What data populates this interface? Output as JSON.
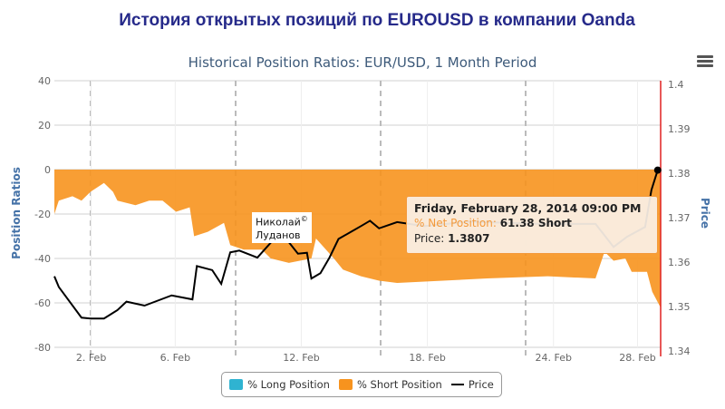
{
  "page_title": "История открытых позиций по EUROUSD в компании Oanda",
  "watermark": [
    "Николай",
    "Луданов",
    "©"
  ],
  "menu_icon": "hamburger-icon",
  "tooltip": {
    "date": "Friday, February 28, 2014 09:00 PM",
    "net_label": "% Net Position:",
    "net_value": "61.38 Short",
    "price_label": "Price:",
    "price_value": "1.3807"
  },
  "legend": [
    {
      "label": "% Long Position",
      "color": "#2fb3d1"
    },
    {
      "label": "% Short Position",
      "color": "#f7931e"
    },
    {
      "label": "Price",
      "color": "#000000"
    }
  ],
  "chart_data": {
    "type": "area",
    "title": "Historical Position Ratios: EUR/USD, 1 Month Period",
    "ylabel": "Position Ratios",
    "y2label": "Price",
    "ylim": [
      -80,
      40
    ],
    "y2lim": [
      1.34,
      1.4
    ],
    "xlim_days": [
      0.25,
      29.1
    ],
    "yticks": [
      "40",
      "20",
      "0",
      "-20",
      "-40",
      "-60",
      "-80"
    ],
    "y2ticks": [
      "1.4",
      "1.39",
      "1.38",
      "1.37",
      "1.36",
      "1.35",
      "1.34"
    ],
    "xticks": [
      {
        "day": 2,
        "label": "2. Feb"
      },
      {
        "day": 6,
        "label": "6. Feb"
      },
      {
        "day": 12,
        "label": "12. Feb"
      },
      {
        "day": 18,
        "label": "18. Feb"
      },
      {
        "day": 24,
        "label": "24. Feb"
      },
      {
        "day": 28,
        "label": "28. Feb"
      }
    ],
    "series": [
      {
        "name": "% Short Position",
        "color": "#f7931e",
        "x": [
          0.25,
          0.46,
          1.11,
          1.54,
          1.97,
          2.61,
          3.04,
          3.25,
          4.11,
          4.76,
          5.4,
          6.04,
          6.69,
          6.9,
          7.55,
          8.32,
          8.62,
          9.26,
          10.12,
          10.55,
          11.41,
          12.48,
          12.7,
          13.55,
          13.98,
          14.84,
          15.7,
          16.56,
          20.85,
          23.73,
          26.0,
          26.43,
          26.86,
          27.42,
          27.72,
          28.45,
          28.7,
          29.09
        ],
        "values": [
          -20,
          -14,
          -12,
          -14,
          -10,
          -6,
          -10,
          -14,
          -16,
          -14,
          -14,
          -19,
          -17,
          -30,
          -28,
          -24,
          -34,
          -36,
          -36,
          -40,
          -42,
          -40,
          -31,
          -40,
          -45,
          -48,
          -50,
          -51,
          -49,
          -48,
          -49,
          -37,
          -41,
          -40,
          -46,
          -46,
          -55,
          -62
        ]
      },
      {
        "name": "Price",
        "color": "#000000",
        "axis": "right",
        "x": [
          0.25,
          0.46,
          1.54,
          1.97,
          2.61,
          3.25,
          3.68,
          4.54,
          5.83,
          6.82,
          7.03,
          7.76,
          8.19,
          8.62,
          9.05,
          9.91,
          10.76,
          11.32,
          11.84,
          12.27,
          12.48,
          12.91,
          13.34,
          13.77,
          14.84,
          15.27,
          15.7,
          16.56,
          17.85,
          20.0,
          23.43,
          26.0,
          26.86,
          27.5,
          28.36,
          28.66,
          28.96
        ],
        "values": [
          1.3568,
          1.3544,
          1.3475,
          1.3473,
          1.3473,
          1.3492,
          1.3511,
          1.3502,
          1.3525,
          1.3516,
          1.3591,
          1.3582,
          1.3551,
          1.3622,
          1.3626,
          1.361,
          1.3655,
          1.365,
          1.3619,
          1.3621,
          1.3563,
          1.3575,
          1.361,
          1.3652,
          1.3681,
          1.3693,
          1.3676,
          1.369,
          1.3681,
          1.3691,
          1.3686,
          1.3686,
          1.3634,
          1.3657,
          1.3679,
          1.3762,
          1.3807
        ]
      }
    ]
  }
}
